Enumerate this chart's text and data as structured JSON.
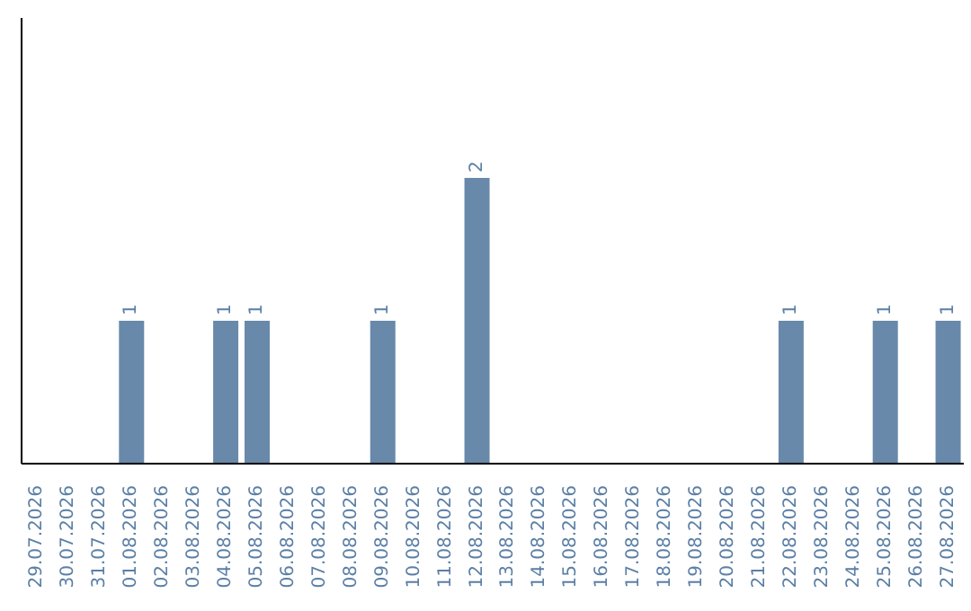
{
  "chart_data": {
    "type": "bar",
    "categories": [
      "29.07.2026",
      "30.07.2026",
      "31.07.2026",
      "01.08.2026",
      "02.08.2026",
      "03.08.2026",
      "04.08.2026",
      "05.08.2026",
      "06.08.2026",
      "07.08.2026",
      "08.08.2026",
      "09.08.2026",
      "10.08.2026",
      "11.08.2026",
      "12.08.2026",
      "13.08.2026",
      "14.08.2026",
      "15.08.2026",
      "16.08.2026",
      "17.08.2026",
      "18.08.2026",
      "19.08.2026",
      "20.08.2026",
      "21.08.2026",
      "22.08.2026",
      "23.08.2026",
      "24.08.2026",
      "25.08.2026",
      "26.08.2026",
      "27.08.2026"
    ],
    "values": [
      0,
      0,
      0,
      1,
      0,
      0,
      1,
      1,
      0,
      0,
      0,
      1,
      0,
      0,
      2,
      0,
      0,
      0,
      0,
      0,
      0,
      0,
      0,
      0,
      1,
      0,
      0,
      1,
      0,
      1
    ],
    "value_labels": [
      null,
      null,
      null,
      "1",
      null,
      null,
      "1",
      "1",
      null,
      null,
      null,
      "1",
      null,
      null,
      "2",
      null,
      null,
      null,
      null,
      null,
      null,
      null,
      null,
      null,
      "1",
      null,
      null,
      "1",
      null,
      "1"
    ],
    "color": "#6889aa",
    "grid": false,
    "legend": false
  }
}
